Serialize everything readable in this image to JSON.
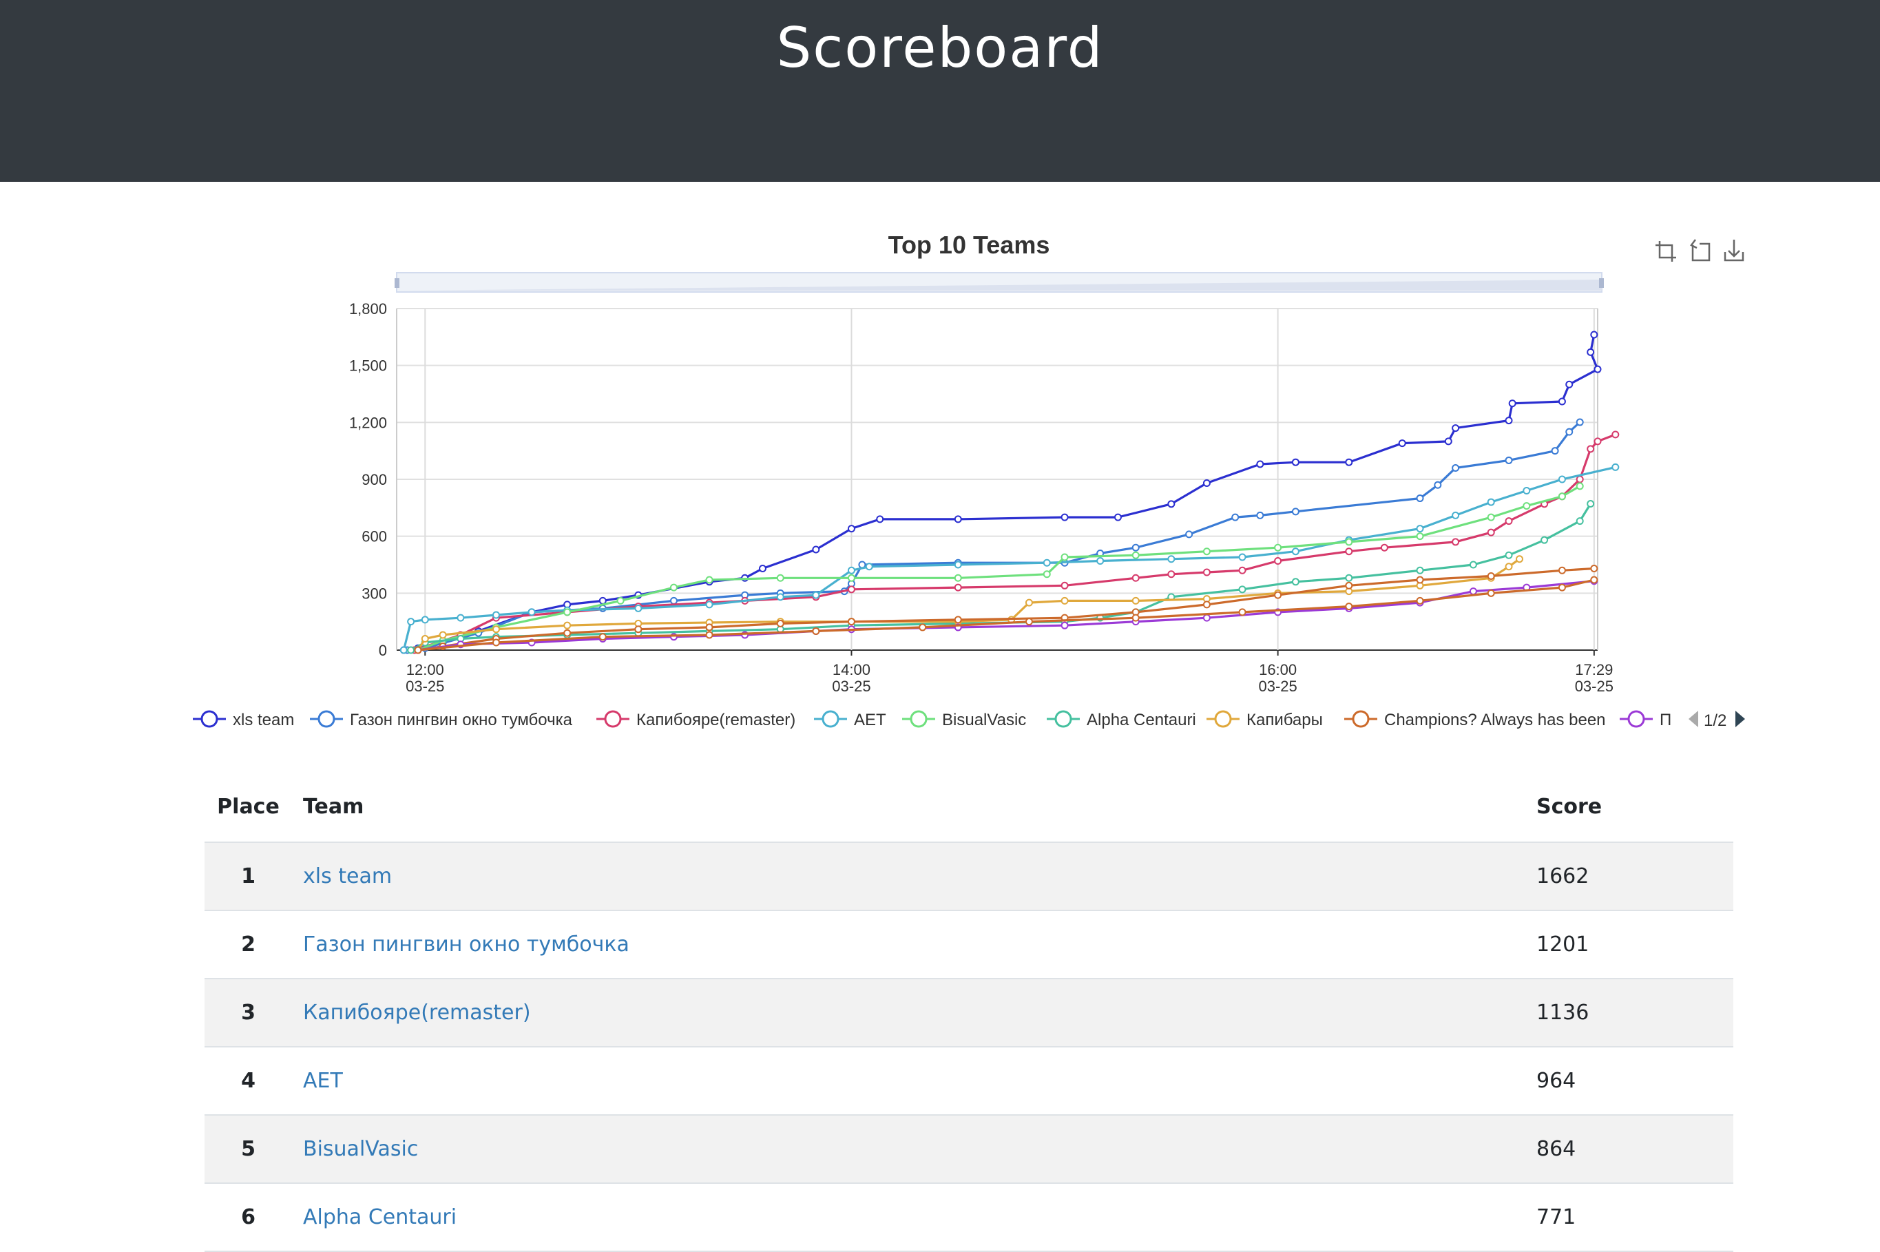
{
  "page": {
    "title": "Scoreboard"
  },
  "chart": {
    "toolbox": [
      {
        "icon": "zoom-select-icon",
        "action": "Zoom"
      },
      {
        "icon": "zoom-reset-icon",
        "action": "Restore"
      },
      {
        "icon": "download-icon",
        "action": "Save as image"
      }
    ],
    "legend_page": "1/2"
  },
  "chart_data": {
    "type": "line",
    "title": "Top 10 Teams",
    "xlabel": "",
    "ylabel": "",
    "xlim": [
      "03-25 12:00",
      "03-25 17:29"
    ],
    "ylim": [
      0,
      1800
    ],
    "y_ticks": [
      "0",
      "300",
      "600",
      "900",
      "1,200",
      "1,500",
      "1,800"
    ],
    "x_ticks": [
      {
        "time": "12:00",
        "date": "03-25"
      },
      {
        "time": "14:00",
        "date": "03-25"
      },
      {
        "time": "16:00",
        "date": "03-25"
      },
      {
        "time": "17:29",
        "date": "03-25"
      }
    ],
    "grid": true,
    "legend_position": "bottom",
    "series": [
      {
        "name": "xls team",
        "color": "#2b2fd0",
        "points": [
          [
            "11:54",
            0
          ],
          [
            "11:58",
            10
          ],
          [
            "12:05",
            40
          ],
          [
            "12:15",
            100
          ],
          [
            "12:30",
            200
          ],
          [
            "12:40",
            240
          ],
          [
            "12:50",
            260
          ],
          [
            "13:00",
            290
          ],
          [
            "13:20",
            360
          ],
          [
            "13:30",
            380
          ],
          [
            "13:35",
            430
          ],
          [
            "13:50",
            530
          ],
          [
            "14:00",
            640
          ],
          [
            "14:08",
            690
          ],
          [
            "14:30",
            690
          ],
          [
            "15:00",
            700
          ],
          [
            "15:15",
            700
          ],
          [
            "15:30",
            770
          ],
          [
            "15:40",
            880
          ],
          [
            "15:55",
            980
          ],
          [
            "16:05",
            990
          ],
          [
            "16:20",
            990
          ],
          [
            "16:35",
            1090
          ],
          [
            "16:48",
            1100
          ],
          [
            "16:50",
            1170
          ],
          [
            "17:05",
            1210
          ],
          [
            "17:06",
            1300
          ],
          [
            "17:20",
            1310
          ],
          [
            "17:22",
            1400
          ],
          [
            "17:30",
            1480
          ],
          [
            "17:28",
            1570
          ],
          [
            "17:29",
            1662
          ]
        ]
      },
      {
        "name": "Газон пингвин окно тумбочка",
        "color": "#3a7bd5",
        "points": [
          [
            "11:55",
            0
          ],
          [
            "12:00",
            10
          ],
          [
            "12:15",
            90
          ],
          [
            "12:30",
            200
          ],
          [
            "12:50",
            220
          ],
          [
            "13:10",
            260
          ],
          [
            "13:30",
            290
          ],
          [
            "13:40",
            300
          ],
          [
            "13:58",
            310
          ],
          [
            "14:00",
            350
          ],
          [
            "14:03",
            450
          ],
          [
            "14:30",
            460
          ],
          [
            "15:00",
            460
          ],
          [
            "15:10",
            510
          ],
          [
            "15:20",
            540
          ],
          [
            "15:35",
            610
          ],
          [
            "15:48",
            700
          ],
          [
            "15:55",
            710
          ],
          [
            "16:05",
            730
          ],
          [
            "16:40",
            800
          ],
          [
            "16:45",
            870
          ],
          [
            "16:50",
            960
          ],
          [
            "17:05",
            1000
          ],
          [
            "17:18",
            1050
          ],
          [
            "17:22",
            1150
          ],
          [
            "17:25",
            1201
          ]
        ]
      },
      {
        "name": "Капибояре(remaster)",
        "color": "#d63a6b",
        "points": [
          [
            "11:57",
            0
          ],
          [
            "12:10",
            80
          ],
          [
            "12:20",
            170
          ],
          [
            "12:40",
            200
          ],
          [
            "13:00",
            230
          ],
          [
            "13:20",
            250
          ],
          [
            "13:30",
            260
          ],
          [
            "13:50",
            280
          ],
          [
            "14:00",
            320
          ],
          [
            "14:30",
            330
          ],
          [
            "15:00",
            340
          ],
          [
            "15:20",
            380
          ],
          [
            "15:30",
            400
          ],
          [
            "15:40",
            410
          ],
          [
            "15:50",
            420
          ],
          [
            "16:00",
            470
          ],
          [
            "16:20",
            520
          ],
          [
            "16:30",
            540
          ],
          [
            "16:50",
            570
          ],
          [
            "17:00",
            620
          ],
          [
            "17:05",
            680
          ],
          [
            "17:15",
            770
          ],
          [
            "17:20",
            810
          ],
          [
            "17:25",
            900
          ],
          [
            "17:28",
            1060
          ],
          [
            "17:30",
            1100
          ],
          [
            "17:35",
            1136
          ]
        ]
      },
      {
        "name": "AET",
        "color": "#48b0cf",
        "points": [
          [
            "11:54",
            0
          ],
          [
            "11:56",
            150
          ],
          [
            "12:00",
            160
          ],
          [
            "12:10",
            170
          ],
          [
            "12:20",
            185
          ],
          [
            "12:30",
            200
          ],
          [
            "12:40",
            210
          ],
          [
            "13:00",
            220
          ],
          [
            "13:20",
            240
          ],
          [
            "13:40",
            280
          ],
          [
            "13:50",
            290
          ],
          [
            "14:00",
            420
          ],
          [
            "14:05",
            440
          ],
          [
            "14:30",
            450
          ],
          [
            "14:55",
            460
          ],
          [
            "15:10",
            470
          ],
          [
            "15:30",
            480
          ],
          [
            "15:50",
            490
          ],
          [
            "16:05",
            520
          ],
          [
            "16:20",
            580
          ],
          [
            "16:40",
            640
          ],
          [
            "16:50",
            710
          ],
          [
            "17:00",
            780
          ],
          [
            "17:10",
            840
          ],
          [
            "17:20",
            900
          ],
          [
            "17:35",
            964
          ]
        ]
      },
      {
        "name": "BisualVasic",
        "color": "#6ee07d",
        "points": [
          [
            "11:58",
            0
          ],
          [
            "12:05",
            50
          ],
          [
            "12:20",
            120
          ],
          [
            "12:40",
            200
          ],
          [
            "12:55",
            260
          ],
          [
            "13:10",
            330
          ],
          [
            "13:20",
            370
          ],
          [
            "13:40",
            380
          ],
          [
            "14:00",
            380
          ],
          [
            "14:30",
            380
          ],
          [
            "14:55",
            400
          ],
          [
            "15:00",
            490
          ],
          [
            "15:20",
            500
          ],
          [
            "15:40",
            520
          ],
          [
            "16:00",
            540
          ],
          [
            "16:20",
            570
          ],
          [
            "16:40",
            600
          ],
          [
            "17:00",
            700
          ],
          [
            "17:10",
            760
          ],
          [
            "17:20",
            810
          ],
          [
            "17:25",
            864
          ]
        ]
      },
      {
        "name": "Alpha Centauri",
        "color": "#45c09f",
        "points": [
          [
            "11:56",
            0
          ],
          [
            "12:00",
            40
          ],
          [
            "12:10",
            60
          ],
          [
            "12:20",
            70
          ],
          [
            "12:40",
            80
          ],
          [
            "13:00",
            90
          ],
          [
            "13:20",
            100
          ],
          [
            "13:40",
            110
          ],
          [
            "14:00",
            130
          ],
          [
            "14:30",
            140
          ],
          [
            "15:00",
            150
          ],
          [
            "15:10",
            170
          ],
          [
            "15:20",
            200
          ],
          [
            "15:30",
            280
          ],
          [
            "15:50",
            320
          ],
          [
            "16:05",
            360
          ],
          [
            "16:20",
            380
          ],
          [
            "16:40",
            420
          ],
          [
            "16:55",
            450
          ],
          [
            "17:05",
            500
          ],
          [
            "17:15",
            580
          ],
          [
            "17:25",
            680
          ],
          [
            "17:28",
            771
          ]
        ]
      },
      {
        "name": "Капибары",
        "color": "#e0a83c",
        "points": [
          [
            "11:58",
            0
          ],
          [
            "12:00",
            60
          ],
          [
            "12:05",
            80
          ],
          [
            "12:20",
            110
          ],
          [
            "12:40",
            130
          ],
          [
            "13:00",
            140
          ],
          [
            "13:20",
            145
          ],
          [
            "13:40",
            150
          ],
          [
            "14:00",
            150
          ],
          [
            "14:30",
            150
          ],
          [
            "14:45",
            160
          ],
          [
            "14:50",
            250
          ],
          [
            "15:00",
            260
          ],
          [
            "15:20",
            260
          ],
          [
            "15:40",
            270
          ],
          [
            "16:00",
            300
          ],
          [
            "16:20",
            310
          ],
          [
            "16:40",
            340
          ],
          [
            "17:00",
            380
          ],
          [
            "17:05",
            440
          ],
          [
            "17:08",
            480
          ]
        ]
      },
      {
        "name": "Champions? Always has been",
        "color": "#cc6a2b",
        "points": [
          [
            "11:58",
            0
          ],
          [
            "12:05",
            20
          ],
          [
            "12:20",
            60
          ],
          [
            "12:40",
            90
          ],
          [
            "13:00",
            110
          ],
          [
            "13:20",
            120
          ],
          [
            "13:40",
            140
          ],
          [
            "14:00",
            150
          ],
          [
            "14:30",
            160
          ],
          [
            "15:00",
            170
          ],
          [
            "15:20",
            200
          ],
          [
            "15:40",
            240
          ],
          [
            "16:00",
            290
          ],
          [
            "16:20",
            340
          ],
          [
            "16:40",
            370
          ],
          [
            "17:00",
            390
          ],
          [
            "17:20",
            420
          ],
          [
            "17:29",
            430
          ]
        ]
      },
      {
        "name": "П",
        "color": "#9b3ad6",
        "points": [
          [
            "11:58",
            0
          ],
          [
            "12:10",
            30
          ],
          [
            "12:30",
            40
          ],
          [
            "12:50",
            60
          ],
          [
            "13:10",
            70
          ],
          [
            "13:30",
            80
          ],
          [
            "13:50",
            100
          ],
          [
            "14:00",
            110
          ],
          [
            "14:30",
            120
          ],
          [
            "15:00",
            130
          ],
          [
            "15:20",
            150
          ],
          [
            "15:40",
            170
          ],
          [
            "16:00",
            200
          ],
          [
            "16:20",
            220
          ],
          [
            "16:40",
            250
          ],
          [
            "16:55",
            310
          ],
          [
            "17:10",
            330
          ],
          [
            "17:29",
            364
          ]
        ]
      },
      {
        "name": "",
        "color": "#cc6a2b",
        "points": [
          [
            "11:58",
            0
          ],
          [
            "12:20",
            40
          ],
          [
            "12:50",
            70
          ],
          [
            "13:20",
            80
          ],
          [
            "13:50",
            100
          ],
          [
            "14:20",
            120
          ],
          [
            "14:50",
            150
          ],
          [
            "15:20",
            170
          ],
          [
            "15:50",
            200
          ],
          [
            "16:20",
            230
          ],
          [
            "16:40",
            260
          ],
          [
            "17:00",
            300
          ],
          [
            "17:20",
            330
          ],
          [
            "17:29",
            370
          ]
        ]
      }
    ]
  },
  "table": {
    "headers": {
      "place": "Place",
      "team": "Team",
      "score": "Score"
    },
    "rows": [
      {
        "place": "1",
        "team": "xls team",
        "score": "1662"
      },
      {
        "place": "2",
        "team": "Газон пингвин окно тумбочка",
        "score": "1201"
      },
      {
        "place": "3",
        "team": "Капибояре(remaster)",
        "score": "1136"
      },
      {
        "place": "4",
        "team": "AET",
        "score": "964"
      },
      {
        "place": "5",
        "team": "BisualVasic",
        "score": "864"
      },
      {
        "place": "6",
        "team": "Alpha Centauri",
        "score": "771"
      }
    ]
  }
}
